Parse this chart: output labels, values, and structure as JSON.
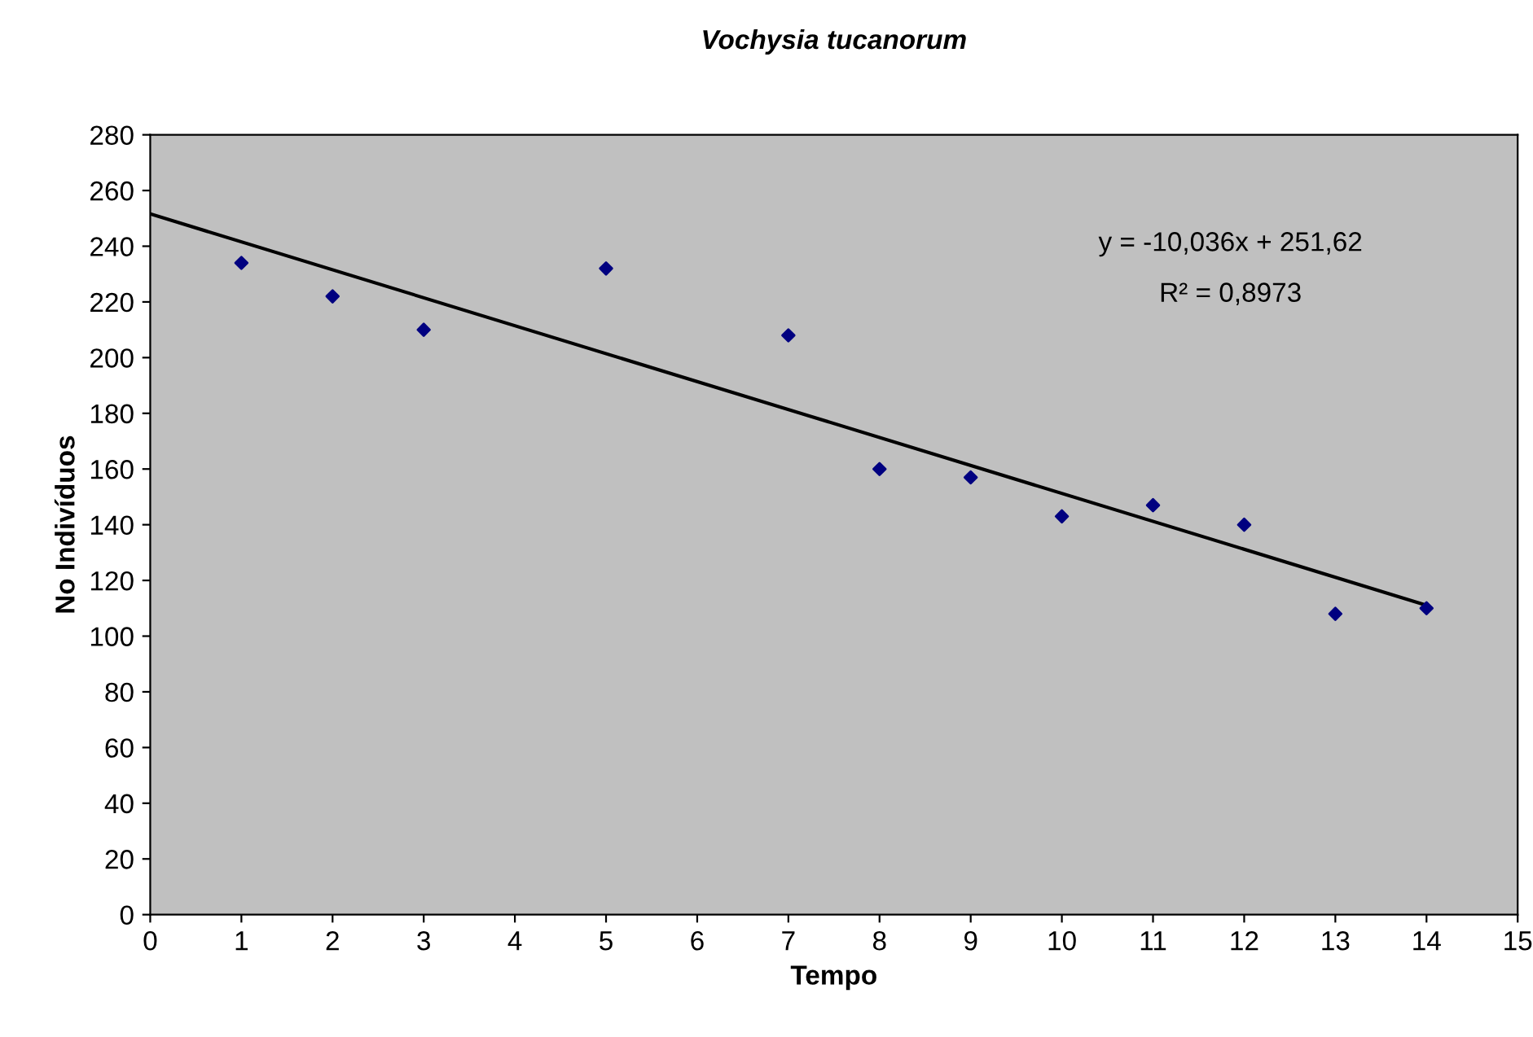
{
  "chart_data": {
    "type": "scatter",
    "title": "Vochysia tucanorum",
    "xlabel": "Tempo",
    "ylabel": "No Indivíduos",
    "series": [
      {
        "color": "#000080",
        "marker": "diamond",
        "x": [
          1,
          2,
          3,
          5,
          7,
          8,
          9,
          10,
          11,
          12,
          13,
          14
        ],
        "values": [
          234,
          222,
          210,
          232,
          208,
          160,
          157,
          143,
          147,
          140,
          108,
          110
        ]
      },
      {
        "type": "line",
        "color": "#000000",
        "marker": "none",
        "line_style": "solid",
        "x": [
          0,
          14
        ],
        "values": [
          251.6,
          111.1
        ]
      }
    ],
    "annotations": [
      "y = -10,036x + 251,62",
      "R² = 0,8973"
    ],
    "xlim": [
      0,
      15
    ],
    "xticks": [
      0,
      1,
      2,
      3,
      4,
      5,
      6,
      7,
      8,
      9,
      10,
      11,
      12,
      13,
      14,
      15
    ],
    "ylim": [
      0,
      280
    ],
    "yticks": [
      0,
      20,
      40,
      60,
      80,
      100,
      120,
      140,
      160,
      180,
      200,
      220,
      240,
      260,
      280
    ],
    "grid": false,
    "legend": false
  }
}
